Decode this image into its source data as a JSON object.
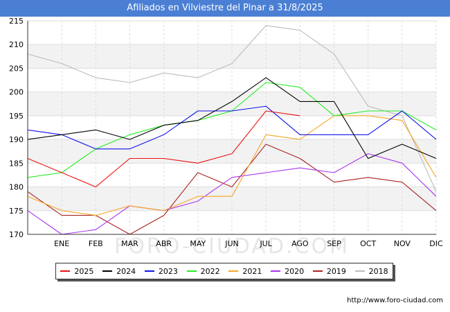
{
  "title": "Afiliados en Vilviestre del Pinar a 31/8/2025",
  "footer_url": "http://www.foro-ciudad.com",
  "watermark": "FORO-CIUDAD.COM",
  "chart_data": {
    "type": "line",
    "title": "Afiliados en Vilviestre del Pinar a 31/8/2025",
    "categories": [
      "",
      "ENE",
      "FEB",
      "MAR",
      "ABR",
      "MAY",
      "JUN",
      "JUL",
      "AGO",
      "SEP",
      "OCT",
      "NOV",
      "DIC"
    ],
    "ylim": [
      170,
      215
    ],
    "yticks": [
      170,
      175,
      180,
      185,
      190,
      195,
      200,
      205,
      210,
      215
    ],
    "grid": true,
    "legend_position": "bottom",
    "series": [
      {
        "name": "2025",
        "color": "#ee1111",
        "values": [
          186,
          183,
          180,
          186,
          186,
          185,
          187,
          196,
          195,
          null,
          null,
          null,
          null
        ]
      },
      {
        "name": "2024",
        "color": "#000000",
        "values": [
          190,
          191,
          192,
          190,
          193,
          194,
          198,
          203,
          198,
          198,
          186,
          189,
          186
        ]
      },
      {
        "name": "2023",
        "color": "#1111ee",
        "values": [
          192,
          191,
          188,
          188,
          191,
          196,
          196,
          197,
          191,
          191,
          191,
          196,
          190
        ]
      },
      {
        "name": "2022",
        "color": "#22ee22",
        "values": [
          182,
          183,
          188,
          191,
          193,
          194,
          196,
          202,
          201,
          195,
          196,
          196,
          192
        ]
      },
      {
        "name": "2021",
        "color": "#f5a623",
        "values": [
          178,
          175,
          174,
          176,
          175,
          178,
          178,
          191,
          190,
          195,
          195,
          194,
          182
        ]
      },
      {
        "name": "2020",
        "color": "#aa33ee",
        "values": [
          175,
          170,
          171,
          176,
          175,
          177,
          182,
          183,
          184,
          183,
          187,
          185,
          178
        ]
      },
      {
        "name": "2019",
        "color": "#aa2222",
        "values": [
          179,
          174,
          174,
          170,
          174,
          183,
          180,
          189,
          186,
          181,
          182,
          181,
          175
        ]
      },
      {
        "name": "2018",
        "color": "#bbbbbb",
        "values": [
          208,
          206,
          203,
          202,
          204,
          203,
          206,
          214,
          213,
          208,
          197,
          195,
          179
        ]
      }
    ]
  }
}
